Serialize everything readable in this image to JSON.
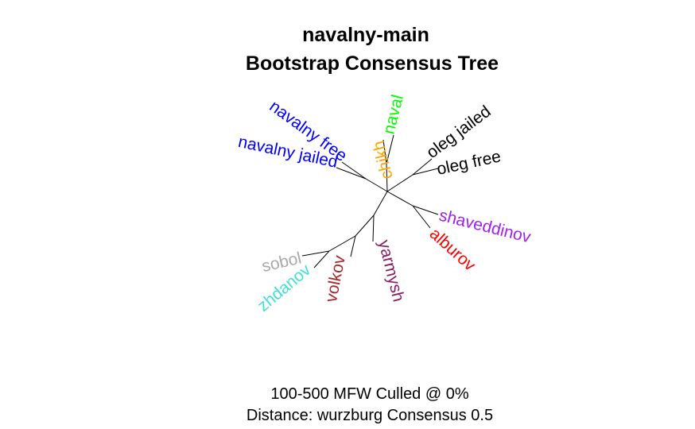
{
  "title": {
    "line1": "navalny-main",
    "line2": "Bootstrap Consensus Tree"
  },
  "footer": {
    "line1": "100-500 MFW  Culled @ 0%",
    "line2": "Distance: wurzburg Consensus 0.5"
  },
  "tree": {
    "type": "unrooted consensus tree",
    "leaves": [
      {
        "id": "chikh",
        "label": "chikh",
        "color": "#FFA500"
      },
      {
        "id": "naval",
        "label": "naval",
        "color": "#00FF00"
      },
      {
        "id": "navalny-free",
        "label": "navalny free",
        "color": "#0000FF"
      },
      {
        "id": "navalny-jailed",
        "label": "navalny jailed",
        "color": "#0000FF"
      },
      {
        "id": "oleg-jailed",
        "label": "oleg jailed",
        "color": "#000000"
      },
      {
        "id": "oleg-free",
        "label": "oleg free",
        "color": "#000000"
      },
      {
        "id": "shaveddinov",
        "label": "shaveddinov",
        "color": "#A020F0"
      },
      {
        "id": "alburov",
        "label": "alburov",
        "color": "#FF0000"
      },
      {
        "id": "yarmysh",
        "label": "yarmysh",
        "color": "#8B1C62"
      },
      {
        "id": "volkov",
        "label": "volkov",
        "color": "#A52A2A"
      },
      {
        "id": "zhdanov",
        "label": "zhdanov",
        "color": "#40E0D0"
      },
      {
        "id": "sobol",
        "label": "sobol",
        "color": "#A9A9A9"
      }
    ]
  }
}
